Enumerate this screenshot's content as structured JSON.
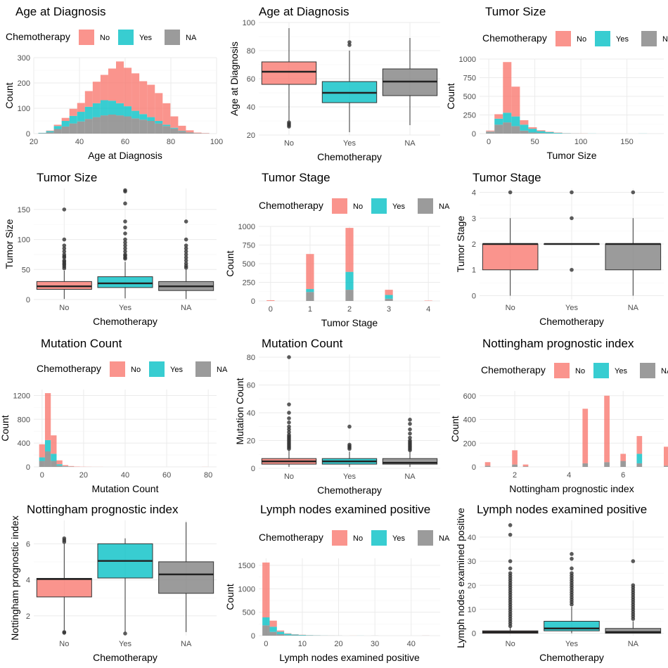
{
  "legend": {
    "title": "Chemotherapy",
    "items": [
      "No",
      "Yes",
      "NA"
    ]
  },
  "colors": {
    "No": "#F8766D",
    "Yes": "#00BFC4",
    "NA": "#7F7F7F"
  },
  "chart_data": [
    {
      "type": "bar",
      "subtype": "stacked-histogram",
      "title": "Age at Diagnosis",
      "xlabel": "Age at Diagnosis",
      "ylabel": "Count",
      "xlim": [
        20,
        100
      ],
      "ylim": [
        0,
        300
      ],
      "xticks": [
        20,
        40,
        60,
        80,
        100
      ],
      "yticks": [
        0,
        100,
        200,
        300
      ],
      "bin_start": 22,
      "bin_width": 3.4,
      "series": [
        {
          "name": "NA",
          "values": [
            2,
            5,
            18,
            28,
            40,
            48,
            58,
            65,
            72,
            75,
            72,
            68,
            60,
            55,
            50,
            40,
            30,
            20,
            10,
            5,
            2,
            1
          ]
        },
        {
          "name": "Yes",
          "values": [
            1,
            5,
            12,
            22,
            30,
            38,
            48,
            55,
            60,
            55,
            48,
            40,
            30,
            22,
            15,
            10,
            5,
            3,
            1,
            0,
            0,
            0
          ]
        },
        {
          "name": "No",
          "values": [
            0,
            2,
            5,
            12,
            28,
            35,
            62,
            85,
            100,
            127,
            165,
            152,
            148,
            130,
            128,
            110,
            85,
            45,
            20,
            8,
            2,
            1
          ]
        }
      ]
    },
    {
      "type": "boxplot",
      "title": "Age at Diagnosis",
      "xlabel": "Chemotherapy",
      "ylabel": "Age at Diagnosis",
      "categories": [
        "No",
        "Yes",
        "NA"
      ],
      "ylim": [
        20,
        100
      ],
      "yticks": [
        20,
        40,
        60,
        80,
        100
      ],
      "boxes": [
        {
          "q1": 56,
          "median": 65,
          "q3": 72,
          "lower": 30,
          "upper": 96,
          "outliers": [
            26,
            27,
            28,
            29
          ]
        },
        {
          "q1": 43,
          "median": 50,
          "q3": 58,
          "lower": 22,
          "upper": 80,
          "outliers": [
            84,
            86
          ]
        },
        {
          "q1": 48,
          "median": 58,
          "q3": 67,
          "lower": 27,
          "upper": 89,
          "outliers": []
        }
      ]
    },
    {
      "type": "bar",
      "subtype": "stacked-histogram",
      "title": "Tumor Size",
      "xlabel": "Tumor Size",
      "ylabel": "Count",
      "xlim": [
        -10,
        190
      ],
      "ylim": [
        0,
        1000
      ],
      "xticks": [
        0,
        50,
        100,
        150
      ],
      "yticks": [
        0,
        250,
        500,
        750,
        1000
      ],
      "bin_start": -3,
      "bin_width": 9.2,
      "series": [
        {
          "name": "NA",
          "values": [
            20,
            120,
            150,
            100,
            40,
            15,
            8,
            4,
            2,
            1,
            0,
            0,
            0,
            0,
            0,
            0,
            0,
            0,
            0,
            0
          ]
        },
        {
          "name": "Yes",
          "values": [
            5,
            80,
            130,
            130,
            80,
            50,
            25,
            15,
            8,
            3,
            2,
            1,
            1,
            0,
            0,
            0,
            0,
            0,
            1,
            0
          ]
        },
        {
          "name": "No",
          "values": [
            15,
            60,
            680,
            400,
            60,
            20,
            12,
            6,
            4,
            2,
            2,
            2,
            0,
            0,
            0,
            0,
            0,
            0,
            0,
            0
          ]
        }
      ]
    },
    {
      "type": "boxplot",
      "title": "Tumor Size",
      "xlabel": "Chemotherapy",
      "ylabel": "Tumor Size",
      "categories": [
        "No",
        "Yes",
        "NA"
      ],
      "ylim": [
        0,
        185
      ],
      "yticks": [
        0,
        50,
        100,
        150
      ],
      "boxes": [
        {
          "q1": 17,
          "median": 22,
          "q3": 30,
          "lower": 1,
          "upper": 48,
          "outliers": [
            52,
            55,
            58,
            60,
            63,
            65,
            70,
            72,
            75,
            80,
            85,
            90,
            100,
            150
          ]
        },
        {
          "q1": 20,
          "median": 27,
          "q3": 38,
          "lower": 2,
          "upper": 63,
          "outliers": [
            68,
            70,
            73,
            75,
            80,
            85,
            90,
            95,
            100,
            110,
            120,
            130,
            160,
            180,
            182
          ]
        },
        {
          "q1": 15,
          "median": 22,
          "q3": 30,
          "lower": 1,
          "upper": 50,
          "outliers": [
            53,
            56,
            60,
            65,
            70,
            75,
            80,
            85,
            90,
            100,
            130
          ]
        }
      ]
    },
    {
      "type": "bar",
      "subtype": "stacked-histogram",
      "title": "Tumor Stage",
      "xlabel": "Tumor Stage",
      "ylabel": "Count",
      "xlim": [
        -0.3,
        4.3
      ],
      "ylim": [
        0,
        1000
      ],
      "xticks": [
        0,
        1,
        2,
        3,
        4
      ],
      "yticks": [
        0,
        250,
        500,
        750,
        1000
      ],
      "bin_start": -0.1,
      "bin_width": 0.2,
      "bin_centers": [
        0,
        1,
        2,
        3,
        4
      ],
      "series": [
        {
          "name": "NA",
          "values": [
            0,
            120,
            150,
            30,
            0
          ]
        },
        {
          "name": "Yes",
          "values": [
            0,
            40,
            240,
            50,
            0
          ]
        },
        {
          "name": "No",
          "values": [
            10,
            470,
            590,
            70,
            5
          ]
        }
      ]
    },
    {
      "type": "boxplot",
      "title": "Tumor Stage",
      "xlabel": "Chemotherapy",
      "ylabel": "Tumor Stage",
      "categories": [
        "No",
        "Yes",
        "NA"
      ],
      "ylim": [
        -0.15,
        4.15
      ],
      "yticks": [
        0,
        1,
        2,
        3,
        4
      ],
      "boxes": [
        {
          "q1": 1,
          "median": 2,
          "q3": 2,
          "lower": 0,
          "upper": 3,
          "outliers": [
            4
          ]
        },
        {
          "q1": 2,
          "median": 2,
          "q3": 2,
          "lower": 2,
          "upper": 2,
          "outliers": [
            1,
            3,
            4
          ]
        },
        {
          "q1": 1,
          "median": 2,
          "q3": 2,
          "lower": 0,
          "upper": 3,
          "outliers": [
            4
          ]
        }
      ]
    },
    {
      "type": "bar",
      "subtype": "stacked-histogram",
      "title": "Mutation Count",
      "xlabel": "Mutation Count",
      "ylabel": "Count",
      "xlim": [
        -4,
        84
      ],
      "ylim": [
        0,
        1300
      ],
      "xticks": [
        0,
        20,
        40,
        60,
        80
      ],
      "yticks": [
        0,
        400,
        800,
        1200
      ],
      "bin_start": -1.4,
      "bin_width": 2.8,
      "series": [
        {
          "name": "NA",
          "values": [
            100,
            260,
            100,
            20,
            5,
            2,
            1,
            0,
            0,
            0,
            0,
            0,
            0,
            0,
            0,
            0,
            0,
            0,
            0,
            0,
            0,
            0,
            0,
            0,
            0,
            0,
            0,
            0,
            0
          ]
        },
        {
          "name": "Yes",
          "values": [
            60,
            190,
            120,
            25,
            5,
            2,
            0,
            0,
            0,
            0,
            0,
            0,
            0,
            0,
            0,
            0,
            0,
            0,
            0,
            0,
            0,
            0,
            0,
            0,
            0,
            0,
            0,
            0,
            0
          ]
        },
        {
          "name": "No",
          "values": [
            220,
            790,
            310,
            65,
            20,
            10,
            5,
            3,
            2,
            1,
            1,
            0,
            0,
            0,
            0,
            0,
            0,
            0,
            0,
            0,
            0,
            0,
            0,
            0,
            0,
            0,
            0,
            0,
            1
          ]
        }
      ]
    },
    {
      "type": "boxplot",
      "title": "Mutation Count",
      "xlabel": "Chemotherapy",
      "ylabel": "Mutation Count",
      "categories": [
        "No",
        "Yes",
        "NA"
      ],
      "ylim": [
        0,
        82
      ],
      "yticks": [
        0,
        20,
        40,
        60,
        80
      ],
      "boxes": [
        {
          "q1": 3,
          "median": 5,
          "q3": 7,
          "lower": 1,
          "upper": 13,
          "outliers": [
            14,
            15,
            16,
            17,
            18,
            19,
            20,
            21,
            22,
            23,
            24,
            26,
            28,
            30,
            33,
            36,
            40,
            46,
            80
          ]
        },
        {
          "q1": 3,
          "median": 5,
          "q3": 7,
          "lower": 1,
          "upper": 12,
          "outliers": [
            14,
            15,
            16,
            17,
            30
          ]
        },
        {
          "q1": 3,
          "median": 4,
          "q3": 7,
          "lower": 1,
          "upper": 12,
          "outliers": [
            13,
            14,
            15,
            16,
            17,
            18,
            19,
            20,
            22,
            25,
            28,
            32,
            35
          ]
        }
      ]
    },
    {
      "type": "bar",
      "subtype": "stacked-histogram",
      "title": "Nottingham prognostic index",
      "xlabel": "Nottingham prognostic index",
      "ylabel": "Count",
      "xlim": [
        0.7,
        7.5
      ],
      "ylim": [
        0,
        640
      ],
      "xticks": [
        2,
        4,
        6
      ],
      "yticks": [
        0,
        200,
        400,
        600
      ],
      "bin_start": 0.9,
      "bin_width": 0.2,
      "series": [
        {
          "name": "NA",
          "values": [
            10,
            0,
            0,
            0,
            0,
            20,
            0,
            5,
            0,
            0,
            0,
            0,
            0,
            0,
            0,
            0,
            0,
            0,
            30,
            0,
            0,
            0,
            40,
            0,
            0,
            50,
            0,
            0,
            30,
            0,
            0,
            0,
            0,
            10,
            0
          ]
        },
        {
          "name": "Yes",
          "values": [
            0,
            0,
            0,
            0,
            0,
            0,
            0,
            0,
            0,
            0,
            0,
            0,
            0,
            0,
            0,
            0,
            0,
            0,
            0,
            0,
            0,
            0,
            0,
            0,
            0,
            0,
            0,
            0,
            80,
            0,
            0,
            0,
            0,
            0,
            0
          ]
        },
        {
          "name": "No",
          "values": [
            30,
            0,
            0,
            0,
            0,
            120,
            0,
            15,
            0,
            0,
            0,
            0,
            0,
            0,
            0,
            0,
            0,
            0,
            460,
            0,
            0,
            0,
            560,
            0,
            0,
            60,
            0,
            0,
            150,
            0,
            0,
            0,
            0,
            160,
            0
          ]
        }
      ]
    },
    {
      "type": "boxplot",
      "title": "Nottingham prognostic index",
      "xlabel": "Chemotherapy",
      "ylabel": "Nottingham prognostic index",
      "categories": [
        "No",
        "Yes",
        "NA"
      ],
      "ylim": [
        0.9,
        7.3
      ],
      "yticks": [
        2,
        4,
        6
      ],
      "boxes": [
        {
          "q1": 3.05,
          "median": 4.04,
          "q3": 4.08,
          "lower": 1.2,
          "upper": 6.0,
          "outliers": [
            1.06,
            1.1,
            6.1,
            6.2,
            6.3
          ]
        },
        {
          "q1": 4.1,
          "median": 5.05,
          "q3": 6.0,
          "lower": 1.1,
          "upper": 6.3,
          "outliers": [
            1.02
          ]
        },
        {
          "q1": 3.25,
          "median": 4.3,
          "q3": 5.0,
          "lower": 1.1,
          "upper": 7.2,
          "outliers": []
        }
      ]
    },
    {
      "type": "bar",
      "subtype": "stacked-histogram",
      "title": "Lymph nodes examined positive",
      "xlabel": "Lymph nodes examined positive",
      "ylabel": "Count",
      "xlim": [
        -2,
        48
      ],
      "ylim": [
        0,
        1650
      ],
      "xticks": [
        0,
        10,
        20,
        30,
        40
      ],
      "yticks": [
        0,
        500,
        1000,
        1500
      ],
      "bin_start": -1,
      "bin_width": 2,
      "series": [
        {
          "name": "NA",
          "values": [
            220,
            80,
            30,
            10,
            8,
            5,
            3,
            2,
            1,
            1,
            0,
            0,
            0,
            0,
            0,
            1,
            0,
            0,
            0,
            0,
            0,
            0,
            1
          ]
        },
        {
          "name": "Yes",
          "values": [
            170,
            110,
            55,
            30,
            15,
            10,
            6,
            4,
            2,
            1,
            1,
            0,
            0,
            1,
            0,
            0,
            0,
            0,
            0,
            0,
            0,
            0,
            0
          ]
        },
        {
          "name": "No",
          "values": [
            1170,
            130,
            25,
            10,
            6,
            4,
            3,
            2,
            1,
            1,
            1,
            0,
            1,
            0,
            0,
            0,
            0,
            0,
            0,
            0,
            0,
            0,
            1
          ]
        }
      ]
    },
    {
      "type": "boxplot",
      "title": "Lymph nodes examined positive",
      "xlabel": "Chemotherapy",
      "ylabel": "Lymph nodes examined positive",
      "categories": [
        "No",
        "Yes",
        "NA"
      ],
      "ylim": [
        -1,
        47
      ],
      "yticks": [
        0,
        10,
        20,
        30,
        40
      ],
      "boxes": [
        {
          "q1": 0,
          "median": 0.5,
          "q3": 1,
          "lower": 0,
          "upper": 2.5,
          "outliers": [
            3,
            4,
            5,
            6,
            7,
            8,
            9,
            10,
            11,
            12,
            13,
            14,
            15,
            16,
            17,
            18,
            19,
            20,
            21,
            22,
            23,
            24,
            25,
            27,
            30,
            41,
            45
          ]
        },
        {
          "q1": 1,
          "median": 2,
          "q3": 5,
          "lower": 0,
          "upper": 11,
          "outliers": [
            12,
            13,
            14,
            15,
            16,
            17,
            18,
            19,
            20,
            21,
            22,
            23,
            24,
            25,
            27,
            31,
            33
          ]
        },
        {
          "q1": 0,
          "median": 0.5,
          "q3": 2,
          "lower": 0,
          "upper": 5,
          "outliers": [
            6,
            7,
            8,
            9,
            10,
            11,
            12,
            13,
            14,
            15,
            16,
            17,
            18,
            19,
            20,
            30
          ]
        }
      ]
    }
  ]
}
